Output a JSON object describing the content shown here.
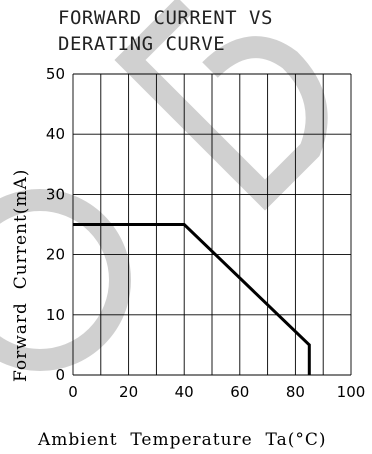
{
  "chart_data": {
    "type": "line",
    "title_line1": "FORWARD CURRENT VS",
    "title_line2": "DERATING CURVE",
    "xlabel": "Ambient  Temperature  Ta(°C)",
    "ylabel": "Forward  Current(mA)",
    "xlim": [
      0,
      100
    ],
    "ylim": [
      0,
      50
    ],
    "x_ticks": [
      0,
      20,
      40,
      60,
      80,
      100
    ],
    "y_ticks": [
      0,
      10,
      20,
      30,
      40,
      50
    ],
    "grid": true,
    "series": [
      {
        "points": [
          {
            "x": 0,
            "y": 25
          },
          {
            "x": 40,
            "y": 25
          },
          {
            "x": 85,
            "y": 5
          },
          {
            "x": 85,
            "y": 0
          }
        ]
      }
    ],
    "colors": {
      "line": "#000000",
      "grid": "#000000",
      "title": "#222222",
      "watermark": "#c8c8c8"
    }
  }
}
